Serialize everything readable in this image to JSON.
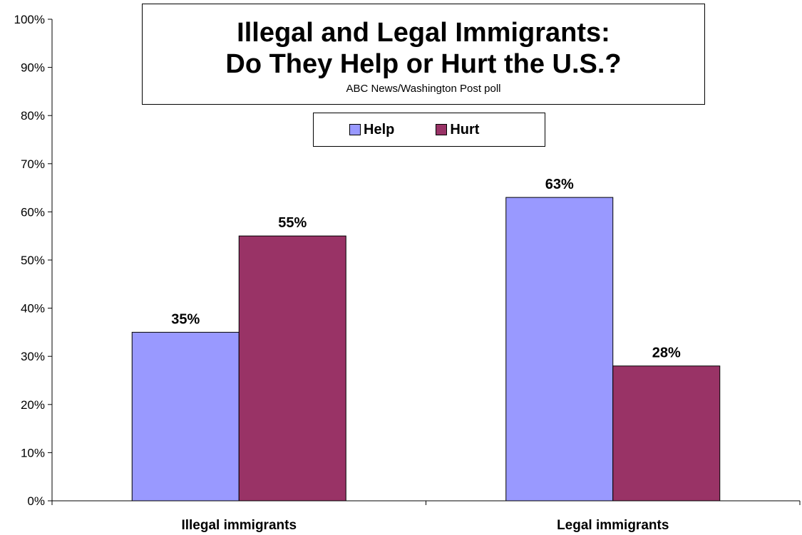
{
  "chart_data": {
    "type": "bar",
    "title": "Illegal and Legal Immigrants:",
    "title_line2": "Do They Help or Hurt the U.S.?",
    "subtitle": "ABC News/Washington Post poll",
    "categories": [
      "Illegal immigrants",
      "Legal immigrants"
    ],
    "series": [
      {
        "name": "Help",
        "values": [
          35,
          63
        ],
        "color": "#9999ff",
        "labels": [
          "35%",
          "63%"
        ]
      },
      {
        "name": "Hurt",
        "values": [
          55,
          28
        ],
        "color": "#993366",
        "labels": [
          "55%",
          "28%"
        ]
      }
    ],
    "xlabel": "",
    "ylabel": "",
    "ylim": [
      0,
      100
    ],
    "yticks": [
      "0%",
      "10%",
      "20%",
      "30%",
      "40%",
      "50%",
      "60%",
      "70%",
      "80%",
      "90%",
      "100%"
    ],
    "grid": false,
    "legend_position": "top-center"
  }
}
